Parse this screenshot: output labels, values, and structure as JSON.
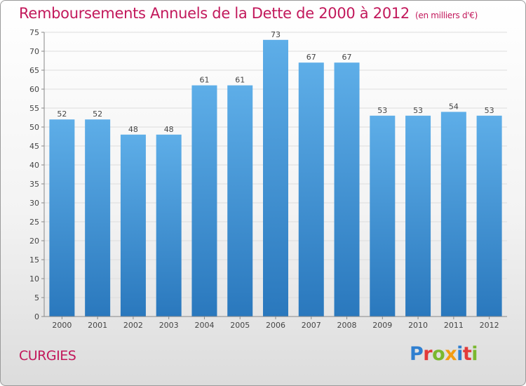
{
  "title": "Remboursements Annuels de la Dette de 2000 à 2012",
  "unit_note": "(en milliers d'€)",
  "commune": "CURGIES",
  "logo": {
    "letters": [
      "P",
      "r",
      "o",
      "x",
      "i",
      "t",
      "i"
    ],
    "colors": [
      "#2f7fd0",
      "#e23a3a",
      "#7ab82f",
      "#f39c12",
      "#2f7fd0",
      "#e23a3a",
      "#7ab82f"
    ]
  },
  "chart_data": {
    "type": "bar",
    "categories": [
      "2000",
      "2001",
      "2002",
      "2003",
      "2004",
      "2005",
      "2006",
      "2007",
      "2008",
      "2009",
      "2010",
      "2011",
      "2012"
    ],
    "values": [
      52,
      52,
      48,
      48,
      61,
      61,
      73,
      67,
      67,
      53,
      53,
      54,
      53
    ],
    "ylim": [
      0,
      75
    ],
    "yticks": [
      0,
      5,
      10,
      15,
      20,
      25,
      30,
      35,
      40,
      45,
      50,
      55,
      60,
      65,
      70,
      75
    ],
    "grid": true,
    "bar_color_top": "#5eaee8",
    "bar_color_bottom": "#2a78bd",
    "axis_label_color": "#444444"
  }
}
